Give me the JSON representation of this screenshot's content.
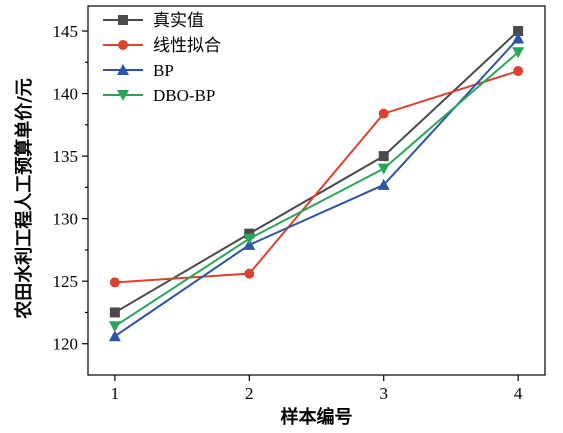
{
  "chart_data": {
    "type": "line",
    "x": [
      1,
      2,
      3,
      4
    ],
    "xlabel": "样本编号",
    "ylabel": "农田水利工程人工预算单价/元",
    "xlim": [
      0.8,
      4.2
    ],
    "ylim": [
      117.5,
      147
    ],
    "xticks": [
      "1",
      "2",
      "3",
      "4"
    ],
    "yticks": [
      "120",
      "125",
      "130",
      "135",
      "140",
      "145"
    ],
    "ytick_values": [
      120,
      125,
      130,
      135,
      140,
      145
    ],
    "legend_position": "top-left",
    "series": [
      {
        "name": "真实值",
        "color": "#4a4a4a",
        "marker": "square",
        "values": [
          122.5,
          128.8,
          135.0,
          145.0
        ]
      },
      {
        "name": "线性拟合",
        "color": "#d9432f",
        "marker": "circle",
        "values": [
          124.9,
          125.6,
          138.4,
          141.8
        ]
      },
      {
        "name": "BP",
        "color": "#2d54a6",
        "marker": "triangle-up",
        "values": [
          120.6,
          127.9,
          132.7,
          144.4
        ]
      },
      {
        "name": "DBO-BP",
        "color": "#2aa65a",
        "marker": "triangle-down",
        "values": [
          121.4,
          128.4,
          134.0,
          143.3
        ]
      }
    ]
  }
}
